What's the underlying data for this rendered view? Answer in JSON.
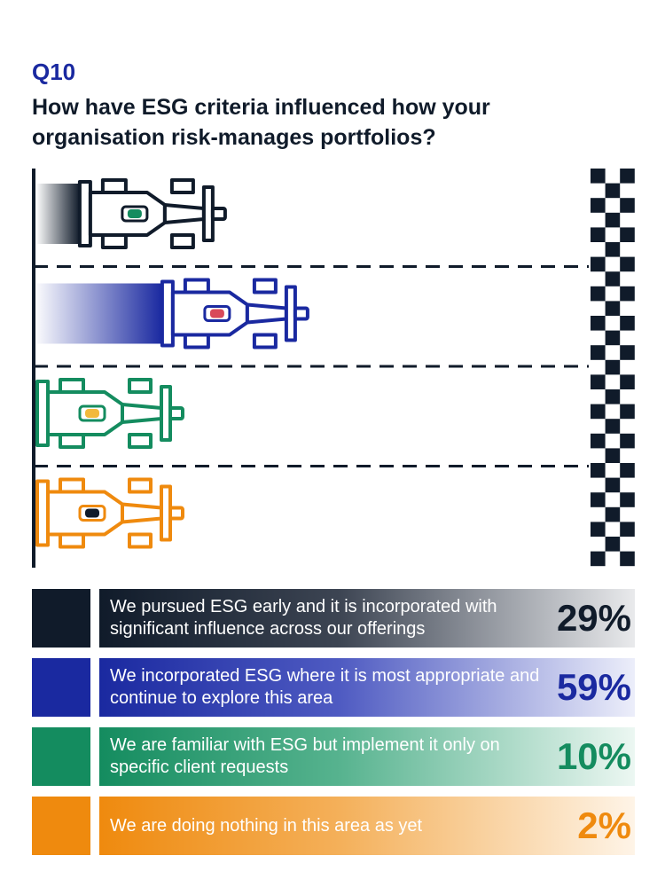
{
  "header": {
    "question_number": "Q10",
    "title": "How have ESG criteria influenced how your organisation risk-manages portfolios?"
  },
  "chart_data": {
    "type": "bar",
    "categories": [
      "We pursued ESG early and it is incorporated with significant influence across our offerings",
      "We incorporated ESG where it is most appropriate and continue to explore this area",
      "We are familiar with ESG but implement it only on specific client requests",
      "We are doing nothing in this area as yet"
    ],
    "values": [
      29,
      59,
      10,
      2
    ],
    "value_labels": [
      "29%",
      "59%",
      "10%",
      "2%"
    ],
    "bar_style": "racing-car",
    "colors": [
      "#101b2a",
      "#1a29a0",
      "#148c5f",
      "#ef8a0e"
    ],
    "cockpit_colors": [
      "#148c5f",
      "#d94a5a",
      "#f2b93b",
      "#101b2a"
    ],
    "finish_line": "checkered"
  }
}
